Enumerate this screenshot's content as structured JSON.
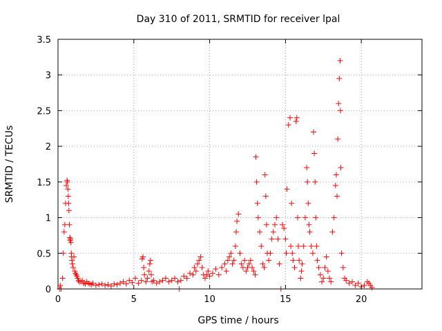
{
  "chart_data": {
    "type": "scatter",
    "title": "Day 310 of 2011, SRMTID for receiver lpal",
    "xlabel": "GPS time / hours",
    "ylabel": "SRMTID / TECUs",
    "xlim": [
      0,
      24
    ],
    "ylim": [
      0,
      3.5
    ],
    "xticks": [
      0,
      5,
      10,
      15,
      20
    ],
    "yticks": [
      0,
      0.5,
      1,
      1.5,
      2,
      2.5,
      3,
      3.5
    ],
    "xtick_labels": [
      "0",
      "5",
      "10",
      "15",
      "20"
    ],
    "ytick_labels": [
      "0",
      "0.5",
      "1",
      "1.5",
      "2",
      "2.5",
      "3",
      "3.5"
    ],
    "grid": true,
    "marker": "+",
    "color": "#ff0000",
    "series": [
      {
        "name": "SRMTID",
        "x": [
          0.1,
          0.15,
          0.2,
          0.3,
          0.35,
          0.4,
          0.45,
          0.5,
          0.55,
          0.6,
          0.62,
          0.65,
          0.68,
          0.7,
          0.72,
          0.75,
          0.78,
          0.8,
          0.82,
          0.85,
          0.88,
          0.9,
          0.92,
          0.95,
          1.0,
          1.05,
          1.1,
          1.15,
          1.2,
          1.25,
          1.3,
          1.35,
          1.4,
          1.5,
          1.6,
          1.7,
          1.8,
          1.9,
          2.0,
          2.1,
          2.2,
          2.3,
          2.5,
          2.7,
          2.9,
          3.1,
          3.3,
          3.5,
          3.7,
          3.9,
          4.1,
          4.3,
          4.5,
          4.7,
          4.9,
          5.1,
          5.3,
          5.5,
          5.55,
          5.6,
          5.65,
          5.7,
          5.8,
          5.9,
          6.0,
          6.05,
          6.1,
          6.15,
          6.2,
          6.3,
          6.5,
          6.7,
          6.9,
          7.1,
          7.3,
          7.5,
          7.7,
          7.9,
          8.0,
          8.1,
          8.3,
          8.5,
          8.7,
          8.9,
          9.0,
          9.1,
          9.2,
          9.3,
          9.4,
          9.5,
          9.6,
          9.7,
          9.8,
          9.9,
          10.0,
          10.2,
          10.4,
          10.6,
          10.8,
          11.0,
          11.1,
          11.2,
          11.3,
          11.4,
          11.5,
          11.6,
          11.7,
          11.75,
          11.8,
          11.9,
          12.0,
          12.1,
          12.2,
          12.3,
          12.4,
          12.5,
          12.6,
          12.7,
          12.8,
          12.9,
          13.0,
          13.05,
          13.1,
          13.15,
          13.2,
          13.3,
          13.4,
          13.5,
          13.6,
          13.65,
          13.7,
          13.75,
          13.8,
          13.9,
          14.0,
          14.1,
          14.2,
          14.3,
          14.4,
          14.5,
          14.6,
          14.7,
          14.8,
          14.9,
          15.0,
          15.05,
          15.1,
          15.2,
          15.3,
          15.35,
          15.4,
          15.45,
          15.5,
          15.6,
          15.7,
          15.75,
          15.8,
          15.85,
          15.9,
          16.0,
          16.05,
          16.1,
          16.2,
          16.3,
          16.4,
          16.45,
          16.5,
          16.55,
          16.6,
          16.7,
          16.8,
          16.85,
          16.9,
          16.95,
          17.0,
          17.05,
          17.1,
          17.2,
          17.3,
          17.4,
          17.5,
          17.6,
          17.7,
          17.8,
          17.9,
          18.0,
          18.1,
          18.2,
          18.3,
          18.35,
          18.4,
          18.45,
          18.5,
          18.55,
          18.6,
          18.62,
          18.65,
          18.7,
          18.8,
          18.9,
          19.0,
          19.2,
          19.4,
          19.6,
          19.8,
          20.0,
          20.2,
          20.4,
          20.5,
          20.6,
          20.7
        ],
        "y": [
          0.0,
          0.05,
          0.0,
          0.15,
          0.5,
          0.8,
          0.9,
          1.2,
          1.45,
          1.52,
          1.5,
          1.4,
          1.3,
          1.2,
          1.1,
          0.9,
          0.72,
          0.68,
          0.7,
          0.65,
          0.5,
          0.45,
          0.4,
          0.35,
          0.3,
          0.45,
          0.25,
          0.22,
          0.2,
          0.18,
          0.15,
          0.12,
          0.1,
          0.1,
          0.12,
          0.08,
          0.07,
          0.1,
          0.08,
          0.07,
          0.06,
          0.08,
          0.05,
          0.06,
          0.07,
          0.05,
          0.06,
          0.04,
          0.07,
          0.06,
          0.08,
          0.1,
          0.07,
          0.12,
          0.09,
          0.15,
          0.08,
          0.12,
          0.42,
          0.45,
          0.3,
          0.2,
          0.1,
          0.15,
          0.25,
          0.35,
          0.4,
          0.2,
          0.1,
          0.12,
          0.08,
          0.1,
          0.12,
          0.15,
          0.1,
          0.12,
          0.15,
          0.1,
          0.0,
          0.12,
          0.18,
          0.15,
          0.22,
          0.2,
          0.3,
          0.25,
          0.35,
          0.4,
          0.45,
          0.3,
          0.2,
          0.15,
          0.2,
          0.25,
          0.18,
          0.22,
          0.28,
          0.2,
          0.3,
          0.35,
          0.25,
          0.4,
          0.45,
          0.5,
          0.35,
          0.4,
          0.6,
          0.8,
          0.95,
          1.05,
          0.5,
          0.35,
          0.3,
          0.4,
          0.25,
          0.3,
          0.35,
          0.4,
          0.3,
          0.25,
          0.2,
          1.85,
          1.5,
          1.2,
          1.0,
          0.8,
          0.6,
          0.35,
          0.3,
          1.6,
          1.3,
          0.9,
          0.5,
          0.4,
          0.5,
          0.7,
          0.8,
          0.9,
          1.0,
          0.7,
          0.35,
          0.0,
          0.9,
          0.85,
          0.7,
          0.5,
          1.4,
          2.3,
          2.4,
          0.6,
          1.2,
          0.5,
          0.4,
          0.3,
          2.35,
          2.4,
          1.0,
          0.6,
          0.4,
          0.15,
          0.25,
          0.35,
          0.6,
          1.0,
          1.7,
          1.5,
          1.2,
          0.9,
          0.8,
          0.6,
          0.5,
          2.2,
          1.9,
          1.5,
          1.0,
          0.6,
          0.4,
          0.3,
          0.2,
          0.1,
          0.15,
          0.3,
          0.45,
          0.25,
          0.15,
          0.1,
          0.8,
          1.0,
          1.45,
          1.6,
          1.3,
          2.1,
          2.6,
          2.95,
          3.2,
          2.5,
          1.7,
          0.5,
          0.3,
          0.15,
          0.12,
          0.08,
          0.1,
          0.05,
          0.08,
          0.03,
          0.05,
          0.1,
          0.08,
          0.05,
          0.02
        ]
      }
    ]
  }
}
